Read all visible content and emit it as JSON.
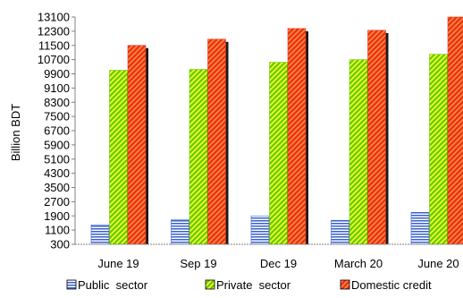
{
  "chart_data": {
    "type": "bar",
    "title": "",
    "xlabel": "",
    "ylabel": "Billion BDT",
    "ylim": [
      300,
      13100
    ],
    "yticks": [
      300,
      1100,
      1900,
      2700,
      3500,
      4300,
      5100,
      5900,
      6700,
      7500,
      8300,
      9100,
      9900,
      10700,
      11500,
      12300,
      13100
    ],
    "categories": [
      "June 19",
      "Sep 19",
      "Dec 19",
      "March 20",
      "June 20"
    ],
    "series": [
      {
        "name": "Public  sector",
        "values": [
          1400,
          1700,
          1900,
          1650,
          2100
        ]
      },
      {
        "name": "Private  sector",
        "values": [
          10100,
          10150,
          10550,
          10700,
          11000
        ]
      },
      {
        "name": "Domestic credit",
        "values": [
          11500,
          11850,
          12450,
          12350,
          13100
        ]
      }
    ],
    "grid": false,
    "legend_position": "bottom",
    "colors": {
      "public": "#3a5fcd",
      "private": "#66cc00",
      "domestic": "#e8321e",
      "shadow": "#1a1a1a",
      "axis": "#808080"
    }
  }
}
